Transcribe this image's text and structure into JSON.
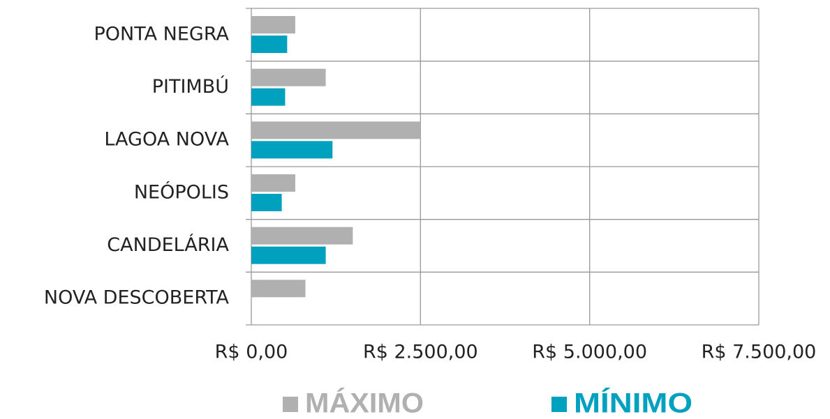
{
  "chart_data": {
    "type": "barh",
    "categories": [
      "PONTA NEGRA",
      "PITIMBÚ",
      "LAGOA NOVA",
      "NEÓPOLIS",
      "CANDELÁRIA",
      "NOVA DESCOBERTA"
    ],
    "series": [
      {
        "name": "MÁXIMO",
        "color": "#b0b0b0",
        "values": [
          650,
          1100,
          2500,
          650,
          1500,
          800
        ]
      },
      {
        "name": "MÍNIMO",
        "color": "#00a0bf",
        "values": [
          530,
          500,
          1200,
          450,
          1100,
          0
        ]
      }
    ],
    "xlim": [
      0,
      7500
    ],
    "xticks": [
      {
        "value": 0,
        "label": "R$ 0,00"
      },
      {
        "value": 2500,
        "label": "R$ 2.500,00"
      },
      {
        "value": 5000,
        "label": "R$ 5.000,00"
      },
      {
        "value": 7500,
        "label": "R$ 7.500,00"
      }
    ],
    "grid": true,
    "legend": "bottom"
  }
}
